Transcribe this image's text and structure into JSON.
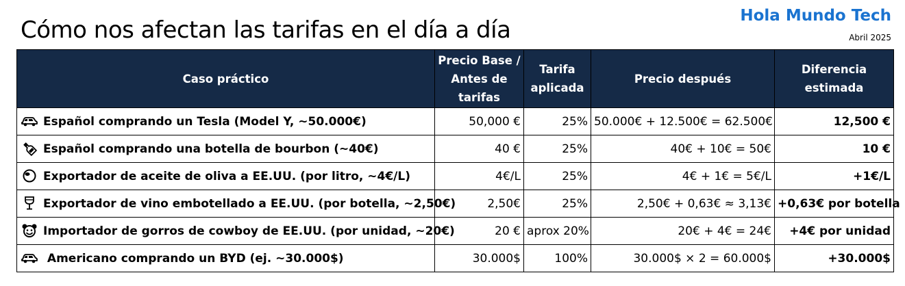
{
  "header": {
    "title": "Cómo nos afectan las tarifas en el día a día",
    "brand": "Hola Mundo Tech",
    "date": "Abril 2025"
  },
  "table": {
    "columns": [
      "Caso práctico",
      "Precio Base / Antes de tarifas",
      "Tarifa aplicada",
      "Precio después",
      "Diferencia estimada"
    ],
    "rows": [
      {
        "icon": "car-icon",
        "case": "Español comprando un Tesla (Model Y, ~50.000€)",
        "base": "50,000 €",
        "tariff": "25%",
        "after": "50.000€ + 12.500€ = 62.500€",
        "diff": "12,500 €"
      },
      {
        "icon": "bottle-icon",
        "case": "Español comprando una botella de bourbon (~40€)",
        "base": "40 €",
        "tariff": "25%",
        "after": "40€ + 10€ = 50€",
        "diff": "10 €"
      },
      {
        "icon": "olive-icon",
        "case": "Exportador de aceite de oliva a EE.UU. (por litro, ~4€/L)",
        "base": "4€/L",
        "tariff": "25%",
        "after": "4€ + 1€ = 5€/L",
        "diff": "+1€/L"
      },
      {
        "icon": "wine-glass-icon",
        "case": "Exportador de vino embotellado a EE.UU. (por botella, ~2,50€)",
        "base": "2,50€",
        "tariff": "25%",
        "after": "2,50€ + 0,63€ ≈ 3,13€",
        "diff": "+0,63€ por botella"
      },
      {
        "icon": "cowboy-face-icon",
        "case": "Importador de gorros de cowboy de EE.UU. (por unidad, ~20€)",
        "base": "20 €",
        "tariff": "aprox 20%",
        "after": "20€ + 4€ = 24€",
        "diff": "+4€ por unidad"
      },
      {
        "icon": "car-icon",
        "case": " Americano comprando un BYD (ej. ~30.000$)",
        "base": "30.000$",
        "tariff": "100%",
        "after": "30.000$ × 2 = 60.000$",
        "diff": "+30.000$"
      }
    ]
  }
}
